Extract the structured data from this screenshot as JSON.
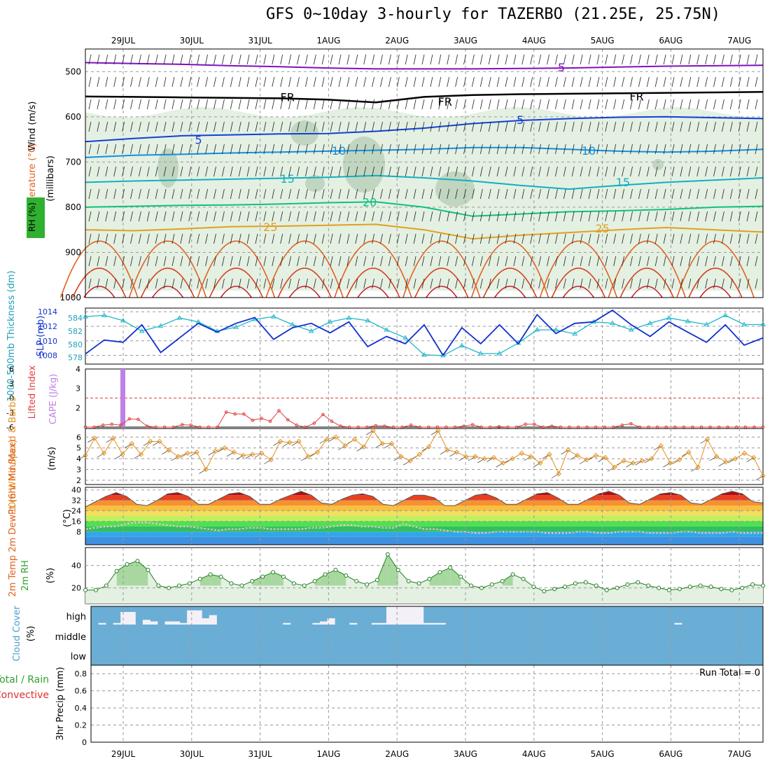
{
  "title": "GFS 0~10day 3-hourly for TAZERBO (21.25E, 25.75N)",
  "dates": [
    "29JUL",
    "30JUL",
    "31JUL",
    "1AUG",
    "2AUG",
    "3AUG",
    "4AUG",
    "5AUG",
    "6AUG",
    "7AUG"
  ],
  "run_total": "Run Total = 0",
  "chart_data": [
    {
      "id": "upper-air",
      "type": "heatmap",
      "title": "Temperature (°C) / Wind (m/s) / RH (%)",
      "label_wind": "Wind (m/s)",
      "label_temp": "Temperature (°C)",
      "label_rh": "RH (%)",
      "ylabel": "(millibars)",
      "yticks": [
        500,
        600,
        700,
        800,
        900,
        1000
      ],
      "ylim": [
        1000,
        450
      ],
      "isotherms": [
        {
          "label": "5",
          "values": [
            480,
            482,
            484,
            487,
            489,
            492,
            494,
            494,
            494,
            493,
            492,
            490,
            488,
            487,
            486
          ]
        },
        {
          "label": "FR",
          "values": [
            555,
            556,
            557,
            558,
            559,
            562,
            568,
            556,
            552,
            550,
            549,
            548,
            547,
            546,
            545
          ]
        },
        {
          "label": "5",
          "values": [
            655,
            648,
            642,
            640,
            638,
            637,
            632,
            625,
            615,
            608,
            604,
            601,
            600,
            602,
            604
          ]
        },
        {
          "label": "10",
          "values": [
            690,
            685,
            683,
            680,
            678,
            676,
            674,
            672,
            668,
            668,
            672,
            676,
            678,
            676,
            672
          ]
        },
        {
          "label": "15",
          "values": [
            745,
            742,
            740,
            738,
            736,
            734,
            730,
            735,
            742,
            752,
            760,
            752,
            745,
            740,
            735
          ]
        },
        {
          "label": "20",
          "values": [
            800,
            798,
            796,
            795,
            793,
            790,
            788,
            800,
            820,
            815,
            810,
            808,
            805,
            800,
            798
          ]
        },
        {
          "label": "25",
          "values": [
            850,
            852,
            848,
            843,
            842,
            840,
            838,
            850,
            870,
            862,
            856,
            850,
            845,
            850,
            855
          ]
        }
      ],
      "isotherm_colors": [
        "#8010c0",
        "#000000",
        "#1040d8",
        "#1090e0",
        "#10b0c0",
        "#10c080",
        "#e0a020"
      ],
      "labels": [
        {
          "text": "5",
          "day": 6.4,
          "p": 492
        },
        {
          "text": "FR",
          "day": 2.4,
          "p": 558
        },
        {
          "text": "FR",
          "day": 4.7,
          "p": 568
        },
        {
          "text": "FR",
          "day": 7.5,
          "p": 556
        },
        {
          "text": "5",
          "day": 1.1,
          "p": 652
        },
        {
          "text": "5",
          "day": 5.8,
          "p": 608
        },
        {
          "text": "10",
          "day": 3.15,
          "p": 676
        },
        {
          "text": "10",
          "day": 6.8,
          "p": 676
        },
        {
          "text": "15",
          "day": 2.4,
          "p": 738
        },
        {
          "text": "15",
          "day": 7.3,
          "p": 746
        },
        {
          "text": "20",
          "day": 3.6,
          "p": 790
        },
        {
          "text": "25",
          "day": 2.15,
          "p": 845
        },
        {
          "text": "25",
          "day": 7.0,
          "p": 848
        }
      ]
    },
    {
      "id": "slp-thickness",
      "type": "line",
      "label_thickness": "1000-500mb Thickness (dm)",
      "label_slp": "SLP (mb)",
      "left_ticks": [
        578,
        580,
        582,
        584
      ],
      "right_ticks": [
        1008,
        1010,
        1012,
        1014
      ],
      "series": [
        {
          "name": "Thickness (dm)",
          "color": "#20b8c8",
          "ylim": [
            577,
            585.5
          ],
          "values": [
            584.2,
            584.4,
            583.6,
            582.0,
            582.8,
            584.0,
            583.4,
            582.0,
            582.6,
            583.8,
            584.2,
            583.0,
            582.0,
            583.4,
            584.0,
            583.6,
            582.2,
            581.0,
            578.4,
            578.3,
            579.8,
            578.6,
            578.6,
            580.2,
            582.2,
            582.2,
            581.6,
            583.4,
            583.2,
            582.2,
            583.2,
            584.0,
            583.5,
            583.0,
            584.4,
            583.0,
            583.0
          ]
        },
        {
          "name": "SLP (mb)",
          "color": "#1030d0",
          "ylim": [
            1006.8,
            1014.5
          ],
          "values": [
            1008.2,
            1010.1,
            1009.8,
            1012.2,
            1008.4,
            1010.4,
            1012.4,
            1011.2,
            1012.4,
            1013.2,
            1010.2,
            1011.8,
            1012.4,
            1011.1,
            1012.6,
            1009.2,
            1010.6,
            1009.6,
            1012.2,
            1008.0,
            1011.8,
            1009.6,
            1012.2,
            1009.6,
            1013.6,
            1011.0,
            1012.4,
            1012.6,
            1014.2,
            1012.2,
            1010.6,
            1012.6,
            1011.2,
            1009.8,
            1012.2,
            1009.4,
            1010.4
          ]
        }
      ]
    },
    {
      "id": "cape-li",
      "type": "bar",
      "label_li": "Lifted Index",
      "label_cape": "CAPE (J/kg)",
      "li_ticks": [
        "6",
        "3",
        "0",
        "-3",
        "-6"
      ],
      "cape_ticks": [
        "2",
        "3",
        "4"
      ],
      "cape_bar": {
        "day": 0.0,
        "value": 4
      },
      "li_values": [
        6,
        6,
        5.6,
        5.4,
        5.6,
        4.3,
        4.4,
        5.8,
        6,
        6,
        6,
        5.5,
        5.6,
        6,
        6,
        6,
        2.9,
        3.3,
        3.3,
        4.6,
        4.2,
        4.8,
        2.6,
        4.5,
        5.6,
        6,
        5.2,
        3.4,
        4.8,
        5.8,
        6,
        6,
        6,
        5.7,
        5.8,
        6,
        6,
        5.6,
        6,
        6,
        6,
        6,
        6,
        5.8,
        5.5,
        6,
        6,
        5.9,
        6,
        6,
        5.4,
        5.4,
        6,
        5.8,
        6,
        6,
        6,
        6,
        6,
        6,
        6,
        5.6,
        5.3,
        6,
        6,
        6,
        6,
        6,
        6,
        6,
        6,
        6,
        6,
        6,
        6,
        6,
        6,
        6
      ]
    },
    {
      "id": "wind10m",
      "type": "line",
      "label": "10m Wind Speed & Barbs",
      "unit": "(m/s)",
      "yticks": [
        2,
        3,
        4,
        5,
        6
      ],
      "ylim": [
        1.6,
        6.8
      ],
      "values": [
        4.3,
        5.9,
        4.5,
        5.9,
        4.4,
        5.4,
        4.4,
        5.6,
        5.6,
        4.8,
        4.2,
        4.5,
        4.6,
        3.0,
        4.7,
        5.0,
        4.6,
        4.3,
        4.4,
        4.5,
        3.9,
        5.6,
        5.5,
        5.6,
        4.2,
        4.6,
        5.8,
        6.0,
        5.2,
        5.8,
        5.1,
        6.6,
        5.4,
        5.4,
        4.2,
        3.8,
        4.4,
        5.1,
        6.6,
        4.8,
        4.6,
        4.2,
        4.2,
        4.0,
        4.1,
        3.6,
        4.0,
        4.5,
        4.2,
        3.6,
        4.4,
        2.6,
        4.8,
        4.3,
        3.9,
        4.3,
        4.1,
        3.2,
        3.8,
        3.6,
        3.8,
        4.0,
        5.2,
        3.6,
        3.9,
        4.6,
        3.2,
        5.8,
        4.2,
        3.7,
        4.0,
        4.5,
        4.1,
        2.4
      ]
    },
    {
      "id": "temp2m",
      "type": "area",
      "label": "2m Temp 2m DewPt (6hr Min/Max)",
      "unit": "(°C)",
      "yticks": [
        8,
        16,
        24,
        32,
        40
      ],
      "yticks_labels": [
        "8",
        "16",
        "24",
        "32",
        "40"
      ],
      "ylim": [
        -2,
        42
      ],
      "temp_values": [
        27,
        31,
        35,
        38,
        35,
        29,
        28,
        32,
        37,
        38,
        35,
        29,
        29,
        33,
        37,
        38,
        35,
        29,
        29,
        33,
        36,
        39,
        36,
        30,
        29,
        33,
        36,
        37,
        35,
        29,
        28,
        32,
        36,
        36,
        34,
        28,
        28,
        32,
        36,
        37,
        34,
        29,
        29,
        33,
        37,
        38,
        34,
        29,
        29,
        33,
        37,
        39,
        36,
        30,
        29,
        33,
        37,
        38,
        36,
        30,
        29,
        33,
        37,
        39,
        37,
        31,
        30
      ],
      "dewpt_values": [
        10,
        11,
        12,
        12,
        14,
        15,
        15,
        14,
        13,
        12,
        12,
        11,
        10,
        9,
        10,
        10,
        11,
        11,
        10,
        10,
        10,
        10,
        11,
        11,
        12,
        13,
        13,
        12,
        12,
        11,
        11,
        14,
        12,
        10,
        10,
        9,
        8,
        8,
        7,
        7,
        8,
        8,
        8,
        8,
        8,
        7,
        7,
        7,
        8,
        8,
        7,
        7,
        8,
        8,
        8,
        7,
        7,
        7,
        8,
        8,
        7,
        7,
        7,
        8,
        7,
        7,
        7
      ]
    },
    {
      "id": "rh2m",
      "type": "area",
      "label": "2m RH",
      "unit": "(%)",
      "yticks": [
        20,
        40
      ],
      "ylim": [
        6,
        56
      ],
      "values": [
        18,
        18,
        22,
        35,
        41,
        44,
        36,
        22,
        20,
        22,
        24,
        28,
        32,
        30,
        24,
        22,
        26,
        30,
        34,
        30,
        24,
        22,
        26,
        32,
        36,
        31,
        26,
        23,
        27,
        50,
        36,
        26,
        24,
        28,
        34,
        38,
        30,
        22,
        20,
        23,
        26,
        32,
        28,
        21,
        17,
        19,
        21,
        24,
        25,
        22,
        18,
        20,
        23,
        25,
        22,
        20,
        18,
        19,
        21,
        22,
        21,
        19,
        18,
        20,
        23,
        22
      ]
    },
    {
      "id": "cloud",
      "type": "bar",
      "label": "Cloud Cover",
      "unit": "(%)",
      "levels": [
        "high",
        "middle",
        "low"
      ],
      "high_values": [
        0,
        5,
        0,
        5,
        40,
        40,
        0,
        15,
        10,
        0,
        10,
        10,
        5,
        45,
        45,
        20,
        30,
        0,
        0,
        0,
        0,
        0,
        0,
        0,
        0,
        0,
        5,
        0,
        0,
        0,
        5,
        10,
        20,
        0,
        0,
        5,
        0,
        0,
        5,
        5,
        60,
        60,
        60,
        60,
        60,
        5,
        5,
        5,
        0,
        0,
        0,
        0,
        0,
        0,
        0,
        0,
        0,
        0,
        0,
        0,
        0,
        0,
        0,
        0,
        0,
        0,
        0,
        0,
        0,
        0,
        0,
        0,
        0,
        0,
        0,
        0,
        0,
        0,
        0,
        5,
        0,
        0,
        0,
        0,
        0,
        0,
        0,
        0,
        0,
        0,
        0
      ]
    },
    {
      "id": "precip",
      "type": "bar",
      "label_total": "Total / Rain",
      "label_conv": "Convective",
      "ylabel": "3hr Precip (mm)",
      "yticks": [
        0,
        0.2,
        0.4,
        0.6,
        0.8
      ],
      "yticks_labels": [
        "0",
        "0.2",
        "0.4",
        "0.6",
        "0.8"
      ],
      "values": []
    }
  ]
}
